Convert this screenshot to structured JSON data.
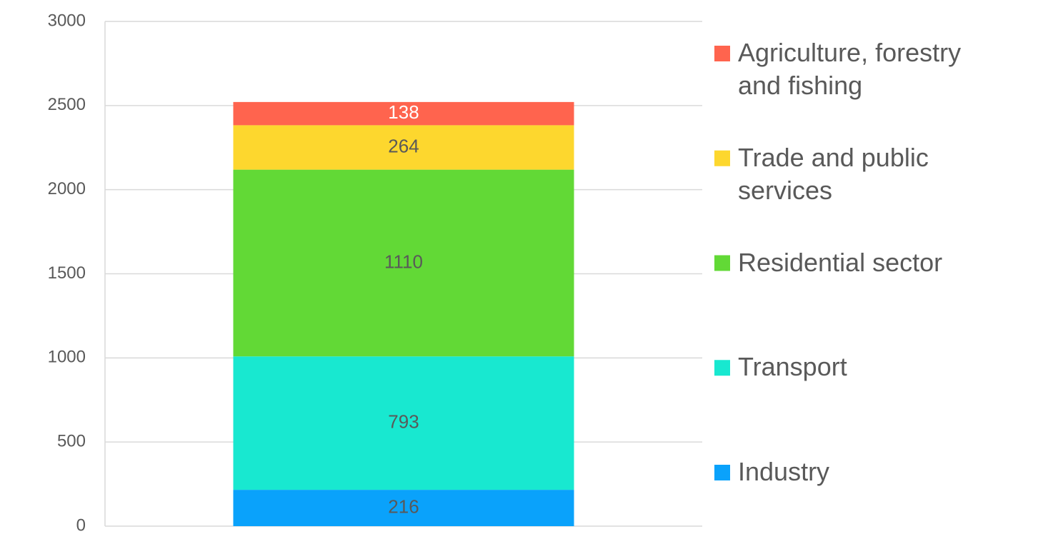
{
  "chart_data": {
    "type": "stacked_bar",
    "categories": [
      null
    ],
    "series": [
      {
        "name": "Industry",
        "color": "#0aa2fb",
        "label_color": "#595959",
        "values": [
          216
        ]
      },
      {
        "name": "Transport",
        "color": "#18e8d0",
        "label_color": "#595959",
        "values": [
          793
        ]
      },
      {
        "name": "Residential sector",
        "color": "#62d936",
        "label_color": "#595959",
        "values": [
          1110
        ]
      },
      {
        "name": "Trade and public services",
        "color": "#fdd72e",
        "label_color": "#595959",
        "values": [
          264
        ]
      },
      {
        "name": "Agriculture, forestry and fishing",
        "color": "#ff644e",
        "label_color": "#ffffff",
        "values": [
          138
        ]
      }
    ],
    "ylim": [
      0,
      3000
    ],
    "yticks": [
      0,
      500,
      1000,
      1500,
      2000,
      2500,
      3000
    ],
    "grid": true,
    "legend": "right"
  }
}
